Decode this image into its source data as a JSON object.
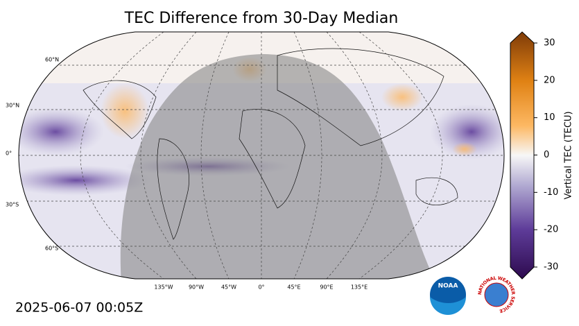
{
  "title": "TEC Difference from 30-Day Median",
  "timestamp": "2025-06-07 00:05Z",
  "map": {
    "lat_labels": [
      "60°N",
      "30°N",
      "0°",
      "30°S",
      "60°S"
    ],
    "lon_labels": [
      "135°W",
      "90°W",
      "45°W",
      "0°",
      "45°E",
      "90°E",
      "135°E"
    ]
  },
  "colorbar": {
    "label": "Vertical TEC (TECU)",
    "lim": [
      -30,
      30
    ],
    "ticks": [
      -30,
      -20,
      -10,
      0,
      10,
      20,
      30
    ]
  },
  "logos": {
    "noaa": "NOAA",
    "nws": "NATIONAL WEATHER SERVICE"
  }
}
